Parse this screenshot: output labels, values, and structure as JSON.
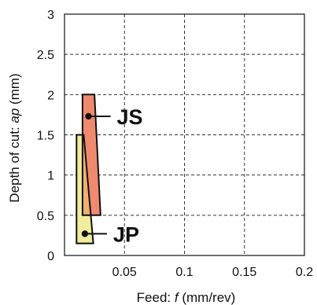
{
  "chart_data": {
    "type": "area",
    "xlabel_prefix": "Feed: ",
    "xlabel_symbol": "f",
    "xlabel_suffix": " (mm/rev)",
    "ylabel_prefix": "Depth of cut: ",
    "ylabel_symbol": "ap",
    "ylabel_suffix": " (mm)",
    "xlim": [
      0,
      0.2
    ],
    "ylim": [
      0,
      3
    ],
    "xticks": [
      0.05,
      0.1,
      0.15,
      0.2
    ],
    "xtick_labels": [
      "0.05",
      "0.1",
      "0.15",
      "0.2"
    ],
    "yticks": [
      0,
      0.5,
      1,
      1.5,
      2,
      2.5,
      3
    ],
    "ytick_labels": [
      "0",
      "0.5",
      "1",
      "1.5",
      "2",
      "2.5",
      "3"
    ],
    "grid": true,
    "regions": [
      {
        "name": "JP",
        "color": "#f2ed9e",
        "polygon": [
          [
            0.01,
            1.5
          ],
          [
            0.016,
            1.5
          ],
          [
            0.024,
            0.15
          ],
          [
            0.01,
            0.15
          ]
        ],
        "marker": [
          0.017,
          0.27
        ]
      },
      {
        "name": "JS",
        "color": "#f08a6e",
        "polygon": [
          [
            0.015,
            2.0
          ],
          [
            0.025,
            2.0
          ],
          [
            0.03,
            0.5
          ],
          [
            0.015,
            0.5
          ]
        ],
        "marker": [
          0.02,
          1.73
        ]
      }
    ],
    "overlap_color": "#f0b070"
  }
}
